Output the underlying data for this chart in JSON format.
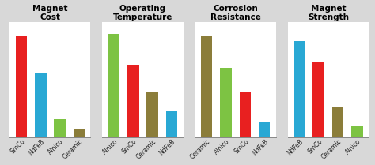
{
  "charts": [
    {
      "title": "Magnet\nCost",
      "categories": [
        "SmCo",
        "NdFeB",
        "Alnico",
        "Ceramic"
      ],
      "values": [
        0.95,
        0.6,
        0.17,
        0.08
      ],
      "colors": [
        "#e82020",
        "#29a8d4",
        "#7dc343",
        "#8b7d3a"
      ]
    },
    {
      "title": "Operating\nTemperature",
      "categories": [
        "Alnico",
        "SmCo",
        "Ceramic",
        "NdFeB"
      ],
      "values": [
        0.97,
        0.68,
        0.43,
        0.25
      ],
      "colors": [
        "#7dc343",
        "#e82020",
        "#8b7d3a",
        "#29a8d4"
      ]
    },
    {
      "title": "Corrosion\nResistance",
      "categories": [
        "Ceramic",
        "Alnico",
        "SmCo",
        "NdFeB"
      ],
      "values": [
        0.95,
        0.65,
        0.42,
        0.14
      ],
      "colors": [
        "#8b7d3a",
        "#7dc343",
        "#e82020",
        "#29a8d4"
      ]
    },
    {
      "title": "Magnet\nStrength",
      "categories": [
        "NdFeB",
        "SmCo",
        "Ceramic",
        "Alnico"
      ],
      "values": [
        0.9,
        0.7,
        0.28,
        0.1
      ],
      "colors": [
        "#29a8d4",
        "#e82020",
        "#8b7d3a",
        "#7dc343"
      ]
    }
  ],
  "fig_background": "#d8d8d8",
  "axes_background": "#ffffff",
  "title_fontsize": 7.5,
  "label_fontsize": 5.5,
  "bar_width": 0.6
}
